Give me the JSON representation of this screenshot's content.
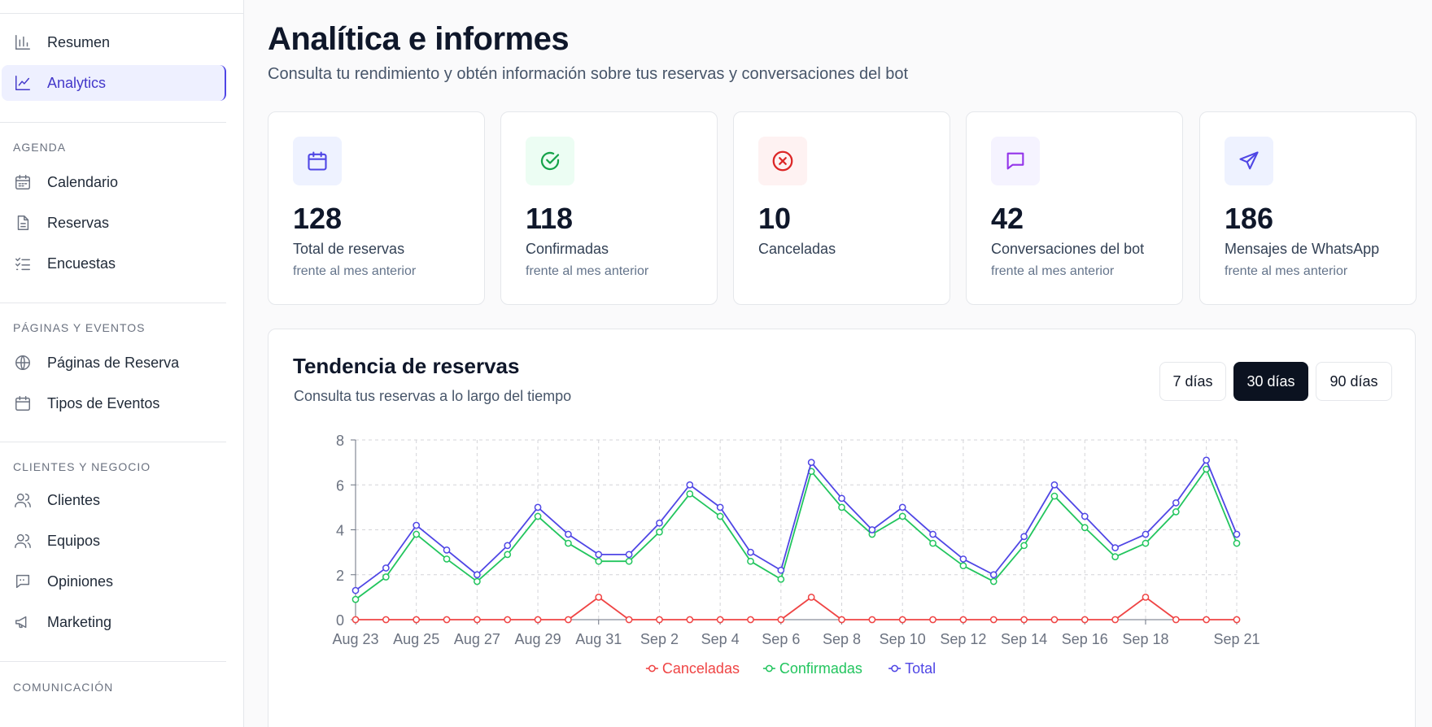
{
  "sidebar": {
    "items": [
      {
        "label": "Resumen",
        "icon": "bar-chart-icon"
      },
      {
        "label": "Analytics",
        "icon": "line-chart-icon"
      }
    ],
    "sections": [
      {
        "title": "AGENDA",
        "items": [
          {
            "label": "Calendario",
            "icon": "calendar-icon"
          },
          {
            "label": "Reservas",
            "icon": "document-icon"
          },
          {
            "label": "Encuestas",
            "icon": "checklist-icon"
          }
        ]
      },
      {
        "title": "PÁGINAS Y EVENTOS",
        "items": [
          {
            "label": "Páginas de Reserva",
            "icon": "globe-icon"
          },
          {
            "label": "Tipos de Eventos",
            "icon": "calendar-icon"
          }
        ]
      },
      {
        "title": "CLIENTES Y NEGOCIO",
        "items": [
          {
            "label": "Clientes",
            "icon": "users-icon"
          },
          {
            "label": "Equipos",
            "icon": "users-icon"
          },
          {
            "label": "Opiniones",
            "icon": "review-icon"
          },
          {
            "label": "Marketing",
            "icon": "megaphone-icon"
          }
        ]
      },
      {
        "title": "COMUNICACIÓN",
        "items": []
      }
    ]
  },
  "header": {
    "title": "Analítica e informes",
    "subtitle": "Consulta tu rendimiento y obtén información sobre tus reservas y conversaciones del bot"
  },
  "stats": [
    {
      "value": "128",
      "label": "Total de reservas",
      "sub": "frente al mes anterior",
      "icon": "calendar-icon",
      "bg": "#eef2ff",
      "color": "#4f46e5"
    },
    {
      "value": "118",
      "label": "Confirmadas",
      "sub": "frente al mes anterior",
      "icon": "check-circle-icon",
      "bg": "#ecfdf3",
      "color": "#16a34a"
    },
    {
      "value": "10",
      "label": "Canceladas",
      "sub": "",
      "icon": "x-circle-icon",
      "bg": "#fef2f2",
      "color": "#dc2626"
    },
    {
      "value": "42",
      "label": "Conversaciones del bot",
      "sub": "frente al mes anterior",
      "icon": "message-icon",
      "bg": "#f5f3ff",
      "color": "#9333ea"
    },
    {
      "value": "186",
      "label": "Mensajes de WhatsApp",
      "sub": "frente al mes anterior",
      "icon": "send-icon",
      "bg": "#eef2ff",
      "color": "#4f46e5"
    }
  ],
  "trend": {
    "title": "Tendencia de reservas",
    "subtitle": "Consulta tus reservas a lo largo del tiempo",
    "ranges": [
      "7 días",
      "30 días",
      "90 días"
    ],
    "active_range": "30 días"
  },
  "chart_data": {
    "type": "line",
    "x": [
      "Aug 23",
      "Aug 24",
      "Aug 25",
      "Aug 26",
      "Aug 27",
      "Aug 28",
      "Aug 29",
      "Aug 30",
      "Aug 31",
      "Sep 1",
      "Sep 2",
      "Sep 3",
      "Sep 4",
      "Sep 5",
      "Sep 6",
      "Sep 7",
      "Sep 8",
      "Sep 9",
      "Sep 10",
      "Sep 11",
      "Sep 12",
      "Sep 13",
      "Sep 14",
      "Sep 15",
      "Sep 16",
      "Sep 17",
      "Sep 18",
      "Sep 19",
      "Sep 20",
      "Sep 21"
    ],
    "tick_labels": [
      "Aug 23",
      "Aug 25",
      "Aug 27",
      "Aug 29",
      "Aug 31",
      "Sep 2",
      "Sep 4",
      "Sep 6",
      "Sep 8",
      "Sep 10",
      "Sep 12",
      "Sep 14",
      "Sep 16",
      "Sep 18",
      "Sep 21"
    ],
    "series": [
      {
        "name": "Canceladas",
        "color": "#ef4444",
        "values": [
          0,
          0,
          0,
          0,
          0,
          0,
          0,
          0,
          1,
          0,
          0,
          0,
          0,
          0,
          0,
          1,
          0,
          0,
          0,
          0,
          0,
          0,
          0,
          0,
          0,
          0,
          1,
          0,
          0,
          0
        ]
      },
      {
        "name": "Confirmadas",
        "color": "#22c55e",
        "values": [
          0.9,
          1.9,
          3.8,
          2.7,
          1.7,
          2.9,
          4.6,
          3.4,
          2.6,
          2.6,
          3.9,
          5.6,
          4.6,
          2.6,
          1.8,
          6.6,
          5.0,
          3.8,
          4.6,
          3.4,
          2.4,
          1.7,
          3.3,
          5.5,
          4.1,
          2.8,
          3.4,
          4.8,
          6.7,
          3.4
        ]
      },
      {
        "name": "Total",
        "color": "#4f46e5",
        "values": [
          1.3,
          2.3,
          4.2,
          3.1,
          2.0,
          3.3,
          5.0,
          3.8,
          2.9,
          2.9,
          4.3,
          6.0,
          5.0,
          3.0,
          2.2,
          7.0,
          5.4,
          4.0,
          5.0,
          3.8,
          2.7,
          2.0,
          3.7,
          6.0,
          4.6,
          3.2,
          3.8,
          5.2,
          7.1,
          3.8
        ]
      }
    ],
    "yticks": [
      0,
      2,
      4,
      6,
      8
    ],
    "ylim": [
      0,
      8
    ],
    "grid": true,
    "legend": "bottom-center"
  }
}
